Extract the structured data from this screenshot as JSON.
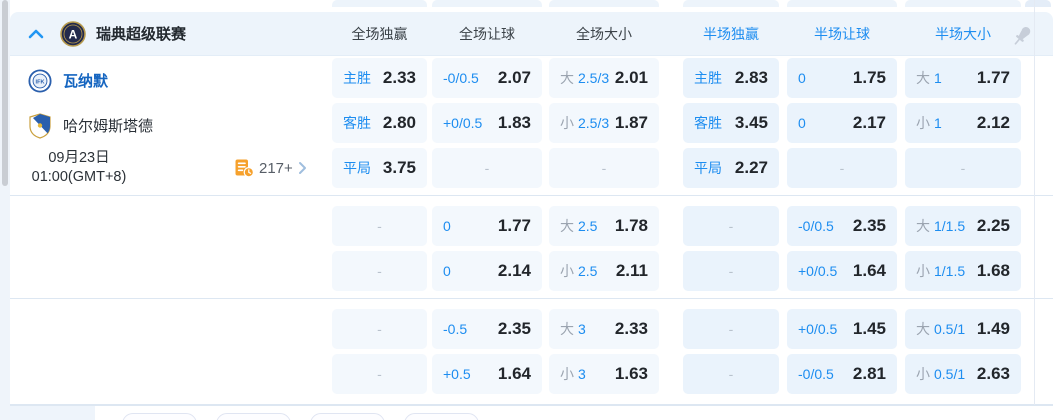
{
  "league_header": {
    "name": "瑞典超级联赛",
    "columns": [
      {
        "label": "全场独赢",
        "highlight": false
      },
      {
        "label": "全场让球",
        "highlight": false
      },
      {
        "label": "全场大小",
        "highlight": false
      },
      {
        "label": "半场独赢",
        "highlight": true
      },
      {
        "label": "半场让球",
        "highlight": true
      },
      {
        "label": "半场大小",
        "highlight": true
      }
    ]
  },
  "match": {
    "home_team": "瓦纳默",
    "away_team": "哈尔姆斯塔德",
    "date": "09月23日",
    "time": "01:00(GMT+8)",
    "markets_count": "217+"
  },
  "odds_groups": [
    {
      "rows": [
        {
          "cells": [
            {
              "label": "主胜",
              "value": "2.33"
            },
            {
              "label": "-0/0.5",
              "value": "2.07"
            },
            {
              "prefix": "大",
              "label": "2.5/3",
              "value": "2.01"
            },
            {
              "label": "主胜",
              "value": "2.83"
            },
            {
              "label": "0",
              "value": "1.75"
            },
            {
              "prefix": "大",
              "label": "1",
              "value": "1.77"
            }
          ]
        },
        {
          "cells": [
            {
              "label": "客胜",
              "value": "2.80"
            },
            {
              "label": "+0/0.5",
              "value": "1.83"
            },
            {
              "prefix": "小",
              "label": "2.5/3",
              "value": "1.87"
            },
            {
              "label": "客胜",
              "value": "3.45"
            },
            {
              "label": "0",
              "value": "2.17"
            },
            {
              "prefix": "小",
              "label": "1",
              "value": "2.12"
            }
          ]
        },
        {
          "cells": [
            {
              "label": "平局",
              "value": "3.75"
            },
            {
              "dash": true
            },
            {
              "dash": true
            },
            {
              "label": "平局",
              "value": "2.27"
            },
            {
              "dash": true
            },
            {
              "dash": true
            }
          ]
        }
      ]
    },
    {
      "rows": [
        {
          "cells": [
            {
              "dash": true
            },
            {
              "label": "0",
              "value": "1.77"
            },
            {
              "prefix": "大",
              "label": "2.5",
              "value": "1.78"
            },
            {
              "dash": true
            },
            {
              "label": "-0/0.5",
              "value": "2.35"
            },
            {
              "prefix": "大",
              "label": "1/1.5",
              "value": "2.25"
            }
          ]
        },
        {
          "cells": [
            {
              "dash": true
            },
            {
              "label": "0",
              "value": "2.14"
            },
            {
              "prefix": "小",
              "label": "2.5",
              "value": "2.11"
            },
            {
              "dash": true
            },
            {
              "label": "+0/0.5",
              "value": "1.64"
            },
            {
              "prefix": "小",
              "label": "1/1.5",
              "value": "1.68"
            }
          ]
        }
      ]
    },
    {
      "rows": [
        {
          "cells": [
            {
              "dash": true
            },
            {
              "label": "-0.5",
              "value": "2.35"
            },
            {
              "prefix": "大",
              "label": "3",
              "value": "2.33"
            },
            {
              "dash": true
            },
            {
              "label": "+0/0.5",
              "value": "1.45"
            },
            {
              "prefix": "大",
              "label": "0.5/1",
              "value": "1.49"
            }
          ]
        },
        {
          "cells": [
            {
              "dash": true
            },
            {
              "label": "+0.5",
              "value": "1.64"
            },
            {
              "prefix": "小",
              "label": "3",
              "value": "1.63"
            },
            {
              "dash": true
            },
            {
              "label": "-0/0.5",
              "value": "2.81"
            },
            {
              "prefix": "小",
              "label": "0.5/1",
              "value": "2.63"
            }
          ]
        }
      ]
    }
  ],
  "icons": {
    "collapse": "chevron-up",
    "league": "allsvenskan-logo",
    "markets": "coin-stack-clock",
    "more": "chevron-right",
    "pin": "pin"
  },
  "colors": {
    "accent_blue": "#1d8df0",
    "home_team_blue": "#1565c0",
    "odds_text": "#22262b",
    "prefix_gray": "#9ba4b0",
    "cell_bg_ft": "#f3f8fd",
    "cell_bg_ht": "#eaf3fc",
    "header_bg": "#edf4fb",
    "coin_orange": "#f6a12c"
  }
}
